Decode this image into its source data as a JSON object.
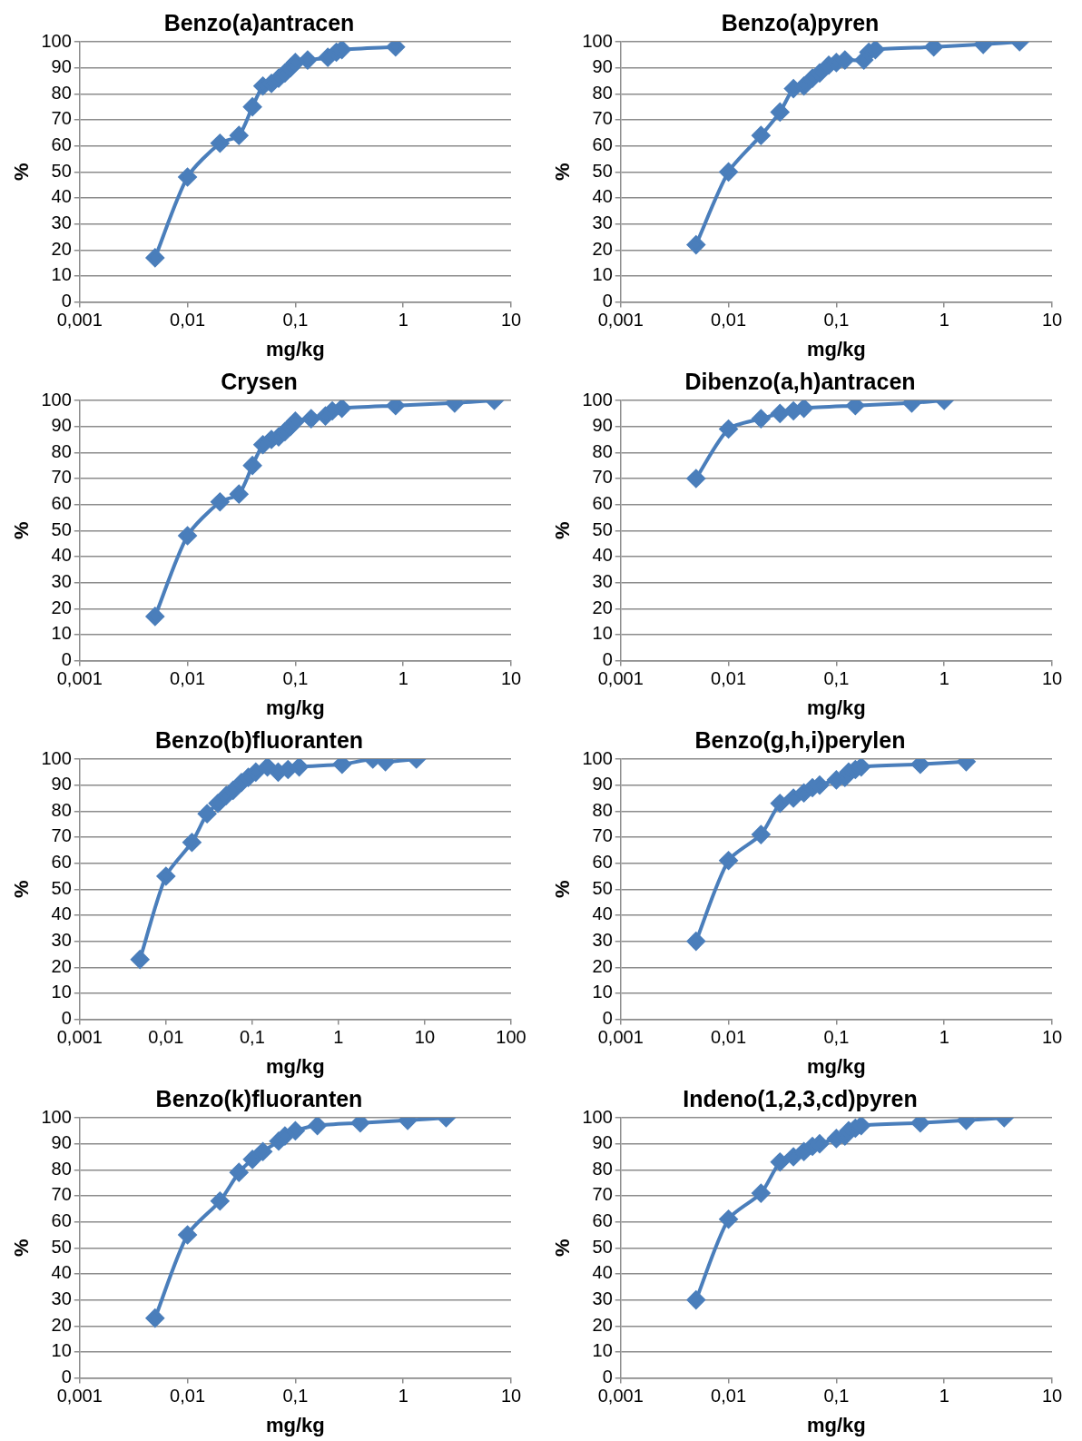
{
  "chart_data": [
    {
      "type": "line",
      "title": "Benzo(a)antracen",
      "xlabel": "mg/kg",
      "ylabel": "%",
      "color": "#4a7ebb",
      "marker": "diamond",
      "log": "x",
      "grid": "y",
      "xlim": [
        0.001,
        10
      ],
      "xticks": [
        {
          "value": 0.001,
          "label": "0,001"
        },
        {
          "value": 0.01,
          "label": "0,01"
        },
        {
          "value": 0.1,
          "label": "0,1"
        },
        1,
        10
      ],
      "ylim": [
        0,
        100
      ],
      "yticks": [
        0,
        10,
        20,
        30,
        40,
        50,
        60,
        70,
        80,
        90,
        100
      ],
      "x": [
        0.005,
        0.01,
        0.02,
        0.03,
        0.04,
        0.05,
        0.06,
        0.07,
        0.08,
        0.09,
        0.1,
        0.13,
        0.2,
        0.24,
        0.27,
        0.85
      ],
      "values": [
        17,
        48,
        61,
        64,
        75,
        83,
        84,
        86,
        88,
        90,
        92,
        93,
        94,
        96,
        97,
        98
      ]
    },
    {
      "type": "line",
      "title": "Benzo(a)pyren",
      "xlabel": "mg/kg",
      "ylabel": "%",
      "color": "#4a7ebb",
      "marker": "diamond",
      "log": "x",
      "grid": "y",
      "xlim": [
        0.001,
        10
      ],
      "xticks": [
        {
          "value": 0.001,
          "label": "0,001"
        },
        {
          "value": 0.01,
          "label": "0,01"
        },
        {
          "value": 0.1,
          "label": "0,1"
        },
        1,
        10
      ],
      "ylim": [
        0,
        100
      ],
      "yticks": [
        0,
        10,
        20,
        30,
        40,
        50,
        60,
        70,
        80,
        90,
        100
      ],
      "x": [
        0.005,
        0.01,
        0.02,
        0.03,
        0.04,
        0.05,
        0.06,
        0.07,
        0.085,
        0.1,
        0.12,
        0.18,
        0.2,
        0.23,
        0.8,
        2.3,
        5
      ],
      "values": [
        22,
        50,
        64,
        73,
        82,
        83,
        86,
        88,
        91,
        92,
        93,
        93,
        96,
        97,
        98,
        99,
        100
      ]
    },
    {
      "type": "line",
      "title": "Crysen",
      "xlabel": "mg/kg",
      "ylabel": "%",
      "color": "#4a7ebb",
      "marker": "diamond",
      "log": "x",
      "grid": "y",
      "xlim": [
        0.001,
        10
      ],
      "xticks": [
        {
          "value": 0.001,
          "label": "0,001"
        },
        {
          "value": 0.01,
          "label": "0,01"
        },
        {
          "value": 0.1,
          "label": "0,1"
        },
        1,
        10
      ],
      "ylim": [
        0,
        100
      ],
      "yticks": [
        0,
        10,
        20,
        30,
        40,
        50,
        60,
        70,
        80,
        90,
        100
      ],
      "x": [
        0.005,
        0.01,
        0.02,
        0.03,
        0.04,
        0.05,
        0.06,
        0.07,
        0.08,
        0.09,
        0.1,
        0.14,
        0.19,
        0.22,
        0.27,
        0.85,
        3,
        7
      ],
      "values": [
        17,
        48,
        61,
        64,
        75,
        83,
        85,
        86,
        88,
        90,
        92,
        93,
        94,
        96,
        97,
        98,
        99,
        100
      ]
    },
    {
      "type": "line",
      "title": "Dibenzo(a,h)antracen",
      "xlabel": "mg/kg",
      "ylabel": "%",
      "color": "#4a7ebb",
      "marker": "diamond",
      "log": "x",
      "grid": "y",
      "xlim": [
        0.001,
        10
      ],
      "xticks": [
        {
          "value": 0.001,
          "label": "0,001"
        },
        {
          "value": 0.01,
          "label": "0,01"
        },
        {
          "value": 0.1,
          "label": "0,1"
        },
        1,
        10
      ],
      "ylim": [
        0,
        100
      ],
      "yticks": [
        0,
        10,
        20,
        30,
        40,
        50,
        60,
        70,
        80,
        90,
        100
      ],
      "x": [
        0.005,
        0.01,
        0.02,
        0.03,
        0.04,
        0.05,
        0.15,
        0.5,
        1
      ],
      "values": [
        70,
        89,
        93,
        95,
        96,
        97,
        98,
        99,
        100
      ]
    },
    {
      "type": "line",
      "title": "Benzo(b)fluoranten",
      "xlabel": "mg/kg",
      "ylabel": "%",
      "color": "#4a7ebb",
      "marker": "diamond",
      "log": "x",
      "grid": "y",
      "xlim": [
        0.001,
        100
      ],
      "xticks": [
        {
          "value": 0.001,
          "label": "0,001"
        },
        {
          "value": 0.01,
          "label": "0,01"
        },
        {
          "value": 0.1,
          "label": "0,1"
        },
        1,
        10,
        100
      ],
      "ylim": [
        0,
        100
      ],
      "yticks": [
        0,
        10,
        20,
        30,
        40,
        50,
        60,
        70,
        80,
        90,
        100
      ],
      "x": [
        0.005,
        0.01,
        0.02,
        0.03,
        0.04,
        0.05,
        0.06,
        0.075,
        0.09,
        0.11,
        0.15,
        0.2,
        0.26,
        0.35,
        1.1,
        2.5,
        3.5,
        8
      ],
      "values": [
        23,
        55,
        68,
        79,
        83,
        86,
        88,
        91,
        93,
        95,
        97,
        95,
        96,
        97,
        98,
        100,
        99,
        100
      ]
    },
    {
      "type": "line",
      "title": "Benzo(g,h,i)perylen",
      "xlabel": "mg/kg",
      "ylabel": "%",
      "color": "#4a7ebb",
      "marker": "diamond",
      "log": "x",
      "grid": "y",
      "xlim": [
        0.001,
        10
      ],
      "xticks": [
        {
          "value": 0.001,
          "label": "0,001"
        },
        {
          "value": 0.01,
          "label": "0,01"
        },
        {
          "value": 0.1,
          "label": "0,1"
        },
        1,
        10
      ],
      "ylim": [
        0,
        100
      ],
      "yticks": [
        0,
        10,
        20,
        30,
        40,
        50,
        60,
        70,
        80,
        90,
        100
      ],
      "x": [
        0.005,
        0.01,
        0.02,
        0.03,
        0.04,
        0.05,
        0.06,
        0.07,
        0.1,
        0.12,
        0.13,
        0.15,
        0.17,
        0.6,
        1.6
      ],
      "values": [
        30,
        61,
        71,
        83,
        85,
        87,
        89,
        90,
        92,
        93,
        95,
        96,
        97,
        98,
        99
      ]
    },
    {
      "type": "line",
      "title": "Benzo(k)fluoranten",
      "xlabel": "mg/kg",
      "ylabel": "%",
      "color": "#4a7ebb",
      "marker": "diamond",
      "log": "x",
      "grid": "y",
      "xlim": [
        0.001,
        10
      ],
      "xticks": [
        {
          "value": 0.001,
          "label": "0,001"
        },
        {
          "value": 0.01,
          "label": "0,01"
        },
        {
          "value": 0.1,
          "label": "0,1"
        },
        1,
        10
      ],
      "ylim": [
        0,
        100
      ],
      "yticks": [
        0,
        10,
        20,
        30,
        40,
        50,
        60,
        70,
        80,
        90,
        100
      ],
      "x": [
        0.005,
        0.01,
        0.02,
        0.03,
        0.04,
        0.05,
        0.07,
        0.08,
        0.1,
        0.16,
        0.4,
        1.1,
        2.5
      ],
      "values": [
        23,
        55,
        68,
        79,
        84,
        87,
        91,
        93,
        95,
        97,
        98,
        99,
        100
      ]
    },
    {
      "type": "line",
      "title": "Indeno(1,2,3,cd)pyren",
      "xlabel": "mg/kg",
      "ylabel": "%",
      "color": "#4a7ebb",
      "marker": "diamond",
      "log": "x",
      "grid": "y",
      "xlim": [
        0.001,
        10
      ],
      "xticks": [
        {
          "value": 0.001,
          "label": "0,001"
        },
        {
          "value": 0.01,
          "label": "0,01"
        },
        {
          "value": 0.1,
          "label": "0,1"
        },
        1,
        10
      ],
      "ylim": [
        0,
        100
      ],
      "yticks": [
        0,
        10,
        20,
        30,
        40,
        50,
        60,
        70,
        80,
        90,
        100
      ],
      "x": [
        0.005,
        0.01,
        0.02,
        0.03,
        0.04,
        0.05,
        0.06,
        0.07,
        0.1,
        0.12,
        0.13,
        0.15,
        0.17,
        0.6,
        1.6,
        3.6
      ],
      "values": [
        30,
        61,
        71,
        83,
        85,
        87,
        89,
        90,
        92,
        93,
        95,
        96,
        97,
        98,
        99,
        100
      ]
    }
  ]
}
